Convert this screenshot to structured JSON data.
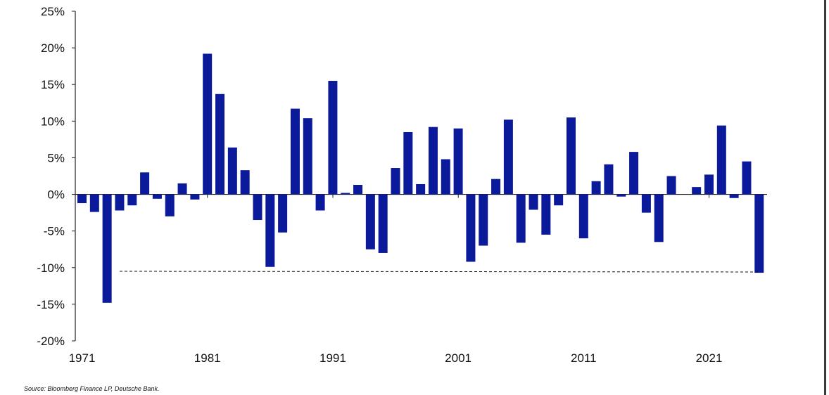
{
  "chart_data": {
    "type": "bar",
    "title": "",
    "xlabel": "",
    "ylabel": "",
    "ylim": [
      -20,
      25
    ],
    "y_ticks": [
      "25%",
      "20%",
      "15%",
      "10%",
      "5%",
      "0%",
      "-5%",
      "-10%",
      "-15%",
      "-20%"
    ],
    "y_tick_values": [
      25,
      20,
      15,
      10,
      5,
      0,
      -5,
      -10,
      -15,
      -20
    ],
    "x_tick_labels": [
      "1971",
      "1981",
      "1991",
      "2001",
      "2011",
      "2021"
    ],
    "x_tick_years": [
      1971,
      1981,
      1991,
      2001,
      2011,
      2021
    ],
    "grid": false,
    "bar_color": "#0a1a9a",
    "reference_line": {
      "value": -10.5,
      "style": "dashed",
      "from_year": 1974,
      "to_year": 2025
    },
    "categories": [
      1971,
      1972,
      1973,
      1974,
      1975,
      1976,
      1977,
      1978,
      1979,
      1980,
      1981,
      1982,
      1983,
      1984,
      1985,
      1986,
      1987,
      1988,
      1989,
      1990,
      1991,
      1992,
      1993,
      1994,
      1995,
      1996,
      1997,
      1998,
      1999,
      2000,
      2001,
      2002,
      2003,
      2004,
      2005,
      2006,
      2007,
      2008,
      2009,
      2010,
      2011,
      2012,
      2013,
      2014,
      2015,
      2016,
      2017,
      2018,
      2019,
      2020,
      2021,
      2022,
      2023,
      2024,
      2025
    ],
    "values": [
      -1.2,
      -2.4,
      -14.8,
      -2.2,
      -1.5,
      3.0,
      -0.6,
      -3.0,
      1.5,
      -0.7,
      19.2,
      13.7,
      6.4,
      3.3,
      -3.5,
      -9.9,
      -5.2,
      11.7,
      10.4,
      -2.2,
      15.5,
      0.2,
      1.3,
      -7.5,
      -8.0,
      3.6,
      8.5,
      1.4,
      9.2,
      4.8,
      9.0,
      -9.2,
      -7.0,
      2.1,
      10.2,
      -6.6,
      -2.1,
      -5.5,
      -1.5,
      10.5,
      -6.0,
      1.8,
      4.1,
      -0.3,
      5.8,
      -2.5,
      -6.5,
      2.5,
      0.0,
      1.0,
      2.7,
      9.4,
      -0.5,
      4.5,
      -10.7
    ]
  },
  "source": "Source: Bloomberg Finance LP, Deutsche Bank."
}
